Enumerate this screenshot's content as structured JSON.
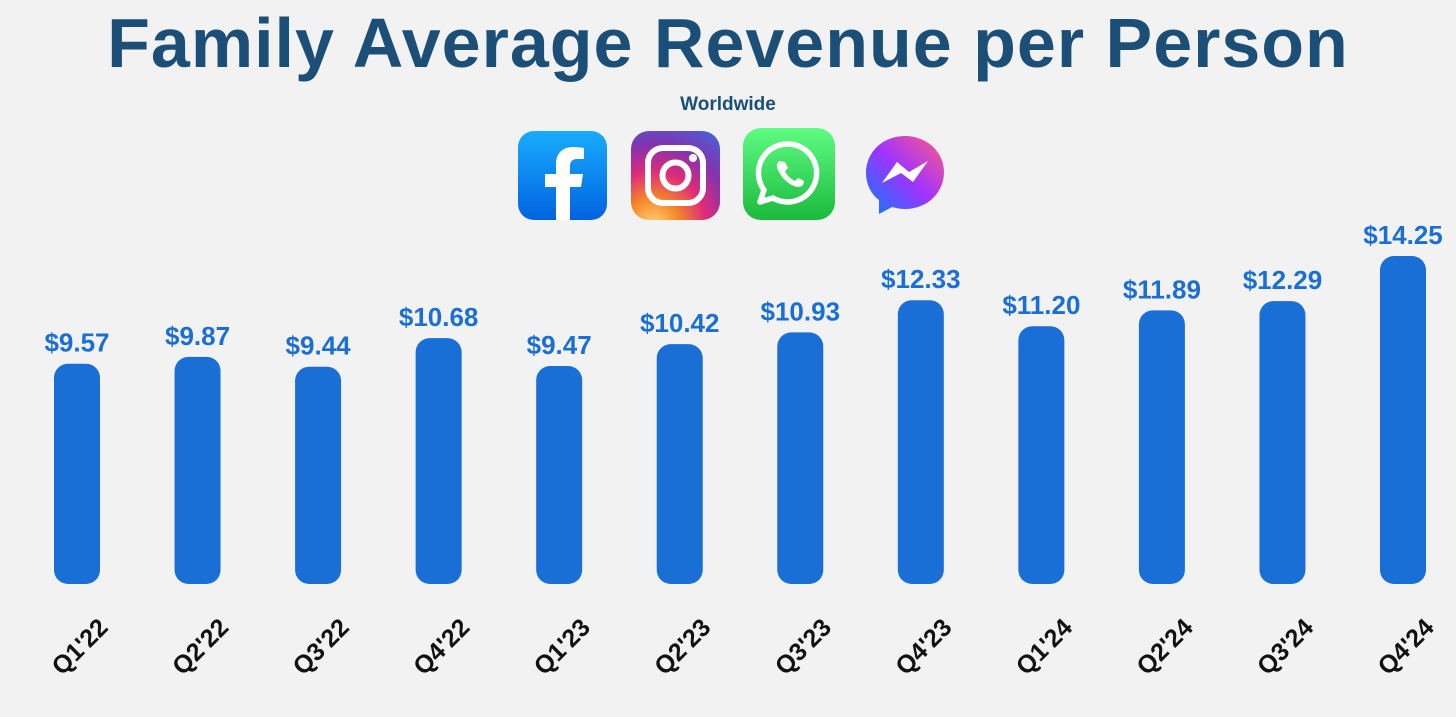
{
  "title": "Family Average Revenue per Person",
  "subtitle": "Worldwide",
  "logos": [
    "facebook-logo",
    "instagram-logo",
    "whatsapp-logo",
    "messenger-logo"
  ],
  "colors": {
    "title": "#1c4f78",
    "bar": "#1a6fd6",
    "value_label": "#1a6fd6",
    "tick_label": "#111111",
    "background": "#f2f2f2"
  },
  "chart_data": {
    "type": "bar",
    "title": "Family Average Revenue per Person",
    "subtitle": "Worldwide",
    "categories": [
      "Q1'22",
      "Q2'22",
      "Q3'22",
      "Q4'22",
      "Q1'23",
      "Q2'23",
      "Q3'23",
      "Q4'23",
      "Q1'24",
      "Q2'24",
      "Q3'24",
      "Q4'24"
    ],
    "values": [
      9.57,
      9.87,
      9.44,
      10.68,
      9.47,
      10.42,
      10.93,
      12.33,
      11.2,
      11.89,
      12.29,
      14.25
    ],
    "value_labels": [
      "$9.57",
      "$9.87",
      "$9.44",
      "$10.68",
      "$9.47",
      "$10.42",
      "$10.93",
      "$12.33",
      "$11.20",
      "$11.89",
      "$12.29",
      "$14.25"
    ],
    "xlabel": "",
    "ylabel": "",
    "ylim": [
      0,
      14.25
    ],
    "grid": false,
    "legend": "none"
  }
}
